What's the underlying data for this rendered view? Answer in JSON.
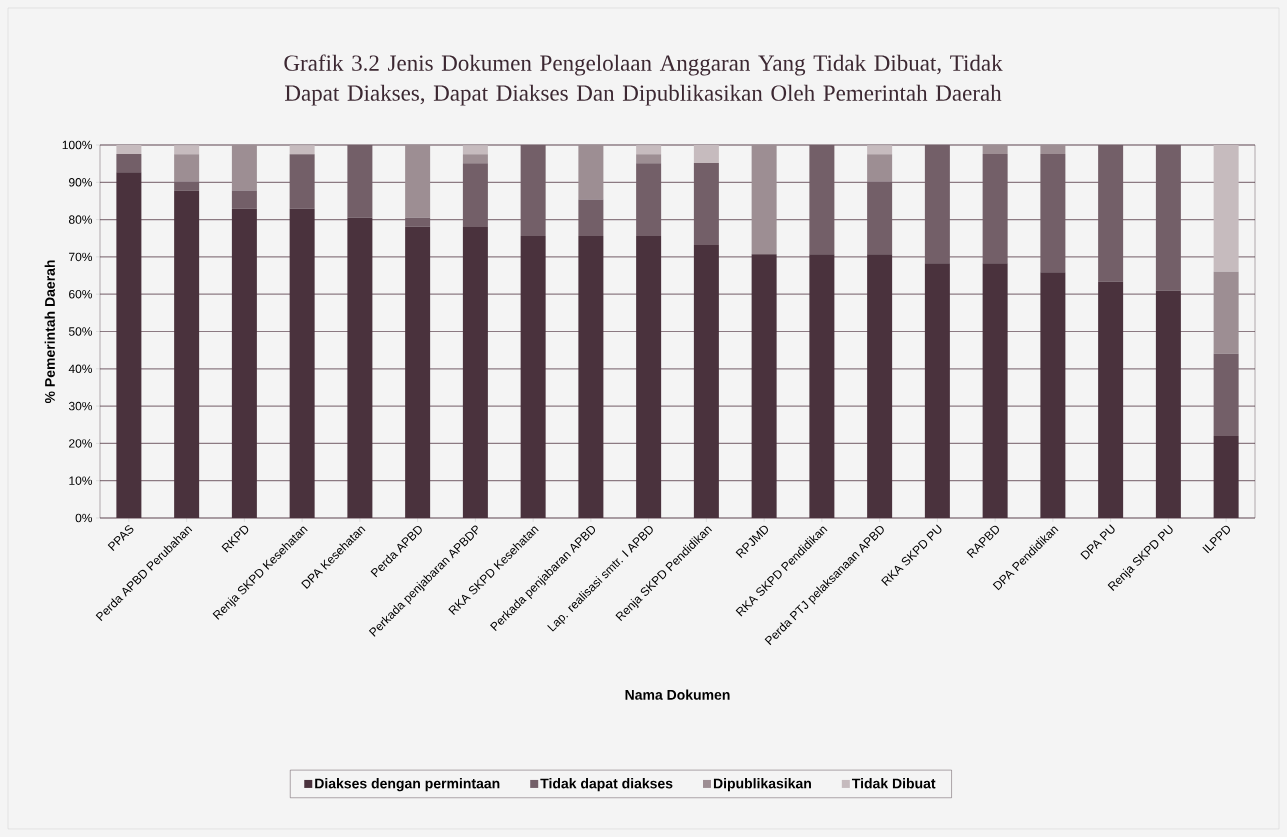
{
  "chart_data": {
    "type": "bar",
    "stacked": true,
    "title": "Grafik 3.2 Jenis Dokumen Pengelolaan Anggaran Yang Tidak Dibuat, Tidak Dapat Diakses, Dapat Diakses Dan Dipublikasikan Oleh Pemerintah Daerah",
    "xlabel": "Nama Dokumen",
    "ylabel": "% Pemerintah Daerah",
    "categories": [
      "PPAS",
      "Perda APBD Perubahan",
      "RKPD",
      "Renja SKPD Kesehatan",
      "DPA Kesehatan",
      "Perda APBD",
      "Perkada penjabaran APBDP",
      "RKA SKPD Kesehatan",
      "Perkada penjabaran APBD",
      "Lap. realisasi smtr. I APBD",
      "Renja SKPD Pendidikan",
      "RPJMD",
      "RKA SKPD Pendidikan",
      "Perda PTJ pelaksanaan APBD",
      "RKA SKPD PU",
      "RAPBD",
      "DPA Pendidikan",
      "DPA PU",
      "Renja SKPD PU",
      "ILPPD"
    ],
    "series": [
      {
        "name": "Diakses dengan permintaan",
        "color": "#4a323d",
        "values": [
          92.7,
          87.8,
          82.9,
          82.9,
          80.5,
          78.1,
          78.0,
          75.6,
          75.6,
          75.6,
          73.2,
          70.7,
          70.7,
          70.7,
          68.3,
          68.3,
          65.9,
          63.4,
          61.0,
          22.0
        ]
      },
      {
        "name": "Tidak dapat diakses",
        "color": "#735f68",
        "values": [
          4.9,
          2.4,
          4.9,
          14.6,
          19.5,
          2.4,
          17.1,
          24.4,
          9.8,
          19.5,
          22.0,
          0,
          29.3,
          19.5,
          31.7,
          29.3,
          31.7,
          36.6,
          39.0,
          22.0
        ]
      },
      {
        "name": "Dipublikasikan",
        "color": "#9d8e93",
        "values": [
          0,
          7.3,
          12.2,
          0,
          0,
          19.5,
          2.4,
          0,
          14.6,
          2.4,
          0,
          29.3,
          0,
          7.3,
          0,
          2.4,
          2.4,
          0,
          0,
          22.0
        ]
      },
      {
        "name": "Tidak Dibuat",
        "color": "#c6bbbe",
        "values": [
          2.4,
          2.4,
          0,
          2.4,
          0,
          0,
          2.4,
          0,
          0,
          2.4,
          4.9,
          0,
          0,
          2.4,
          0,
          0,
          0,
          0,
          0,
          34.1
        ]
      }
    ],
    "ylim": [
      0,
      100
    ],
    "yticks": [
      {
        "value": 0,
        "label": "0%"
      },
      {
        "value": 10,
        "label": "10%"
      },
      {
        "value": 20,
        "label": "20%"
      },
      {
        "value": 30,
        "label": "30%"
      },
      {
        "value": 40,
        "label": "40%"
      },
      {
        "value": 50,
        "label": "50%"
      },
      {
        "value": 60,
        "label": "60%"
      },
      {
        "value": 70,
        "label": "70%"
      },
      {
        "value": 80,
        "label": "80%"
      },
      {
        "value": 90,
        "label": "90%"
      },
      {
        "value": 100,
        "label": "100%"
      }
    ],
    "grid": "y",
    "legend": "bottom"
  }
}
